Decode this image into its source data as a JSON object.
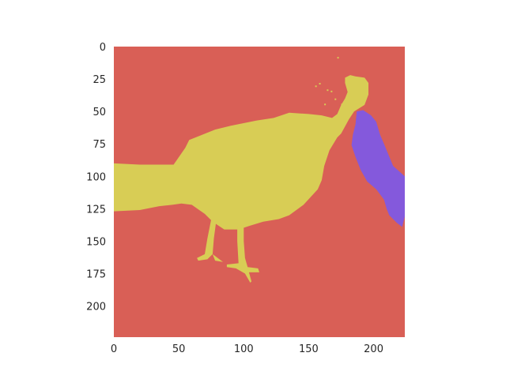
{
  "chart_data": {
    "type": "heatmap",
    "title": "",
    "xlabel": "",
    "ylabel": "",
    "xlim": [
      0,
      224
    ],
    "ylim": [
      224,
      0
    ],
    "x_ticks": [
      0,
      50,
      100,
      150,
      200
    ],
    "y_ticks": [
      0,
      25,
      50,
      75,
      100,
      125,
      150,
      175,
      200
    ],
    "grid": false,
    "legend": "none",
    "image_size": [
      224,
      224
    ],
    "classes": [
      {
        "id": 0,
        "color": "#d95f56",
        "region": "background"
      },
      {
        "id": 1,
        "color": "#d8cd55",
        "region": "bird"
      },
      {
        "id": 2,
        "color": "#8459dc",
        "region": "small object right of bird head"
      }
    ]
  }
}
